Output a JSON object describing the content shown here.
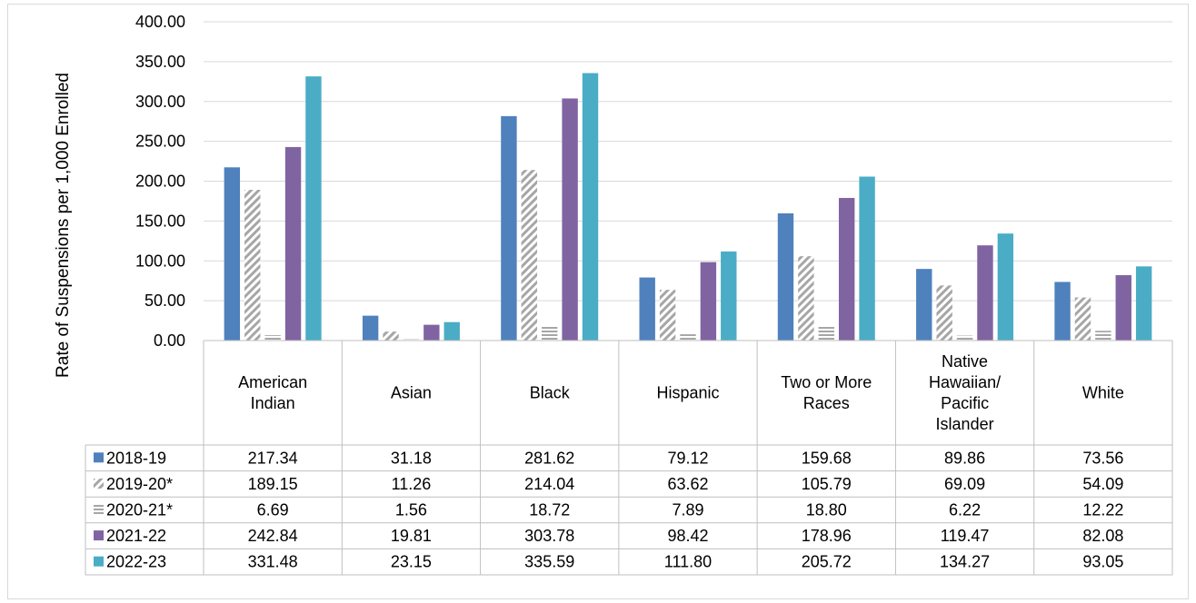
{
  "chart_data": {
    "type": "bar",
    "ylabel": "Rate of Suspensions per 1,000 Enrolled",
    "xlabel": "",
    "ylim": [
      0,
      400
    ],
    "y_ticks": [
      "0.00",
      "50.00",
      "100.00",
      "150.00",
      "200.00",
      "250.00",
      "300.00",
      "350.00",
      "400.00"
    ],
    "categories": [
      "American Indian",
      "Asian",
      "Black",
      "Hispanic",
      "Two or More Races",
      "Native Hawaiian/ Pacific Islander",
      "White"
    ],
    "categories_lines": [
      [
        "American",
        "Indian"
      ],
      [
        "Asian"
      ],
      [
        "Black"
      ],
      [
        "Hispanic"
      ],
      [
        "Two or More",
        "Races"
      ],
      [
        "Native",
        "Hawaiian/",
        "Pacific",
        "Islander"
      ],
      [
        "White"
      ]
    ],
    "series": [
      {
        "name": "2018-19",
        "color": "#4f81bd",
        "pattern": "solid",
        "values": [
          217.34,
          31.18,
          281.62,
          79.12,
          159.68,
          89.86,
          73.56
        ],
        "labels": [
          "217.34",
          "31.18",
          "281.62",
          "79.12",
          "159.68",
          "89.86",
          "73.56"
        ]
      },
      {
        "name": "2019-20*",
        "color": "#a6a6a6",
        "pattern": "diagonal-stripes",
        "values": [
          189.15,
          11.26,
          214.04,
          63.62,
          105.79,
          69.09,
          54.09
        ],
        "labels": [
          "189.15",
          "11.26",
          "214.04",
          "63.62",
          "105.79",
          "69.09",
          "54.09"
        ]
      },
      {
        "name": "2020-21*",
        "color": "#a6a6a6",
        "pattern": "horizontal-stripes",
        "values": [
          6.69,
          1.56,
          18.72,
          7.89,
          18.8,
          6.22,
          12.22
        ],
        "labels": [
          "6.69",
          "1.56",
          "18.72",
          "7.89",
          "18.80",
          "6.22",
          "12.22"
        ]
      },
      {
        "name": "2021-22",
        "color": "#8064a2",
        "pattern": "solid",
        "values": [
          242.84,
          19.81,
          303.78,
          98.42,
          178.96,
          119.47,
          82.08
        ],
        "labels": [
          "242.84",
          "19.81",
          "303.78",
          "98.42",
          "178.96",
          "119.47",
          "82.08"
        ]
      },
      {
        "name": "2022-23",
        "color": "#4bacc6",
        "pattern": "solid",
        "values": [
          331.48,
          23.15,
          335.59,
          111.8,
          205.72,
          134.27,
          93.05
        ],
        "labels": [
          "331.48",
          "23.15",
          "335.59",
          "111.80",
          "205.72",
          "134.27",
          "93.05"
        ]
      }
    ],
    "grid": true,
    "data_table": true,
    "legend": "data-table-keys"
  }
}
